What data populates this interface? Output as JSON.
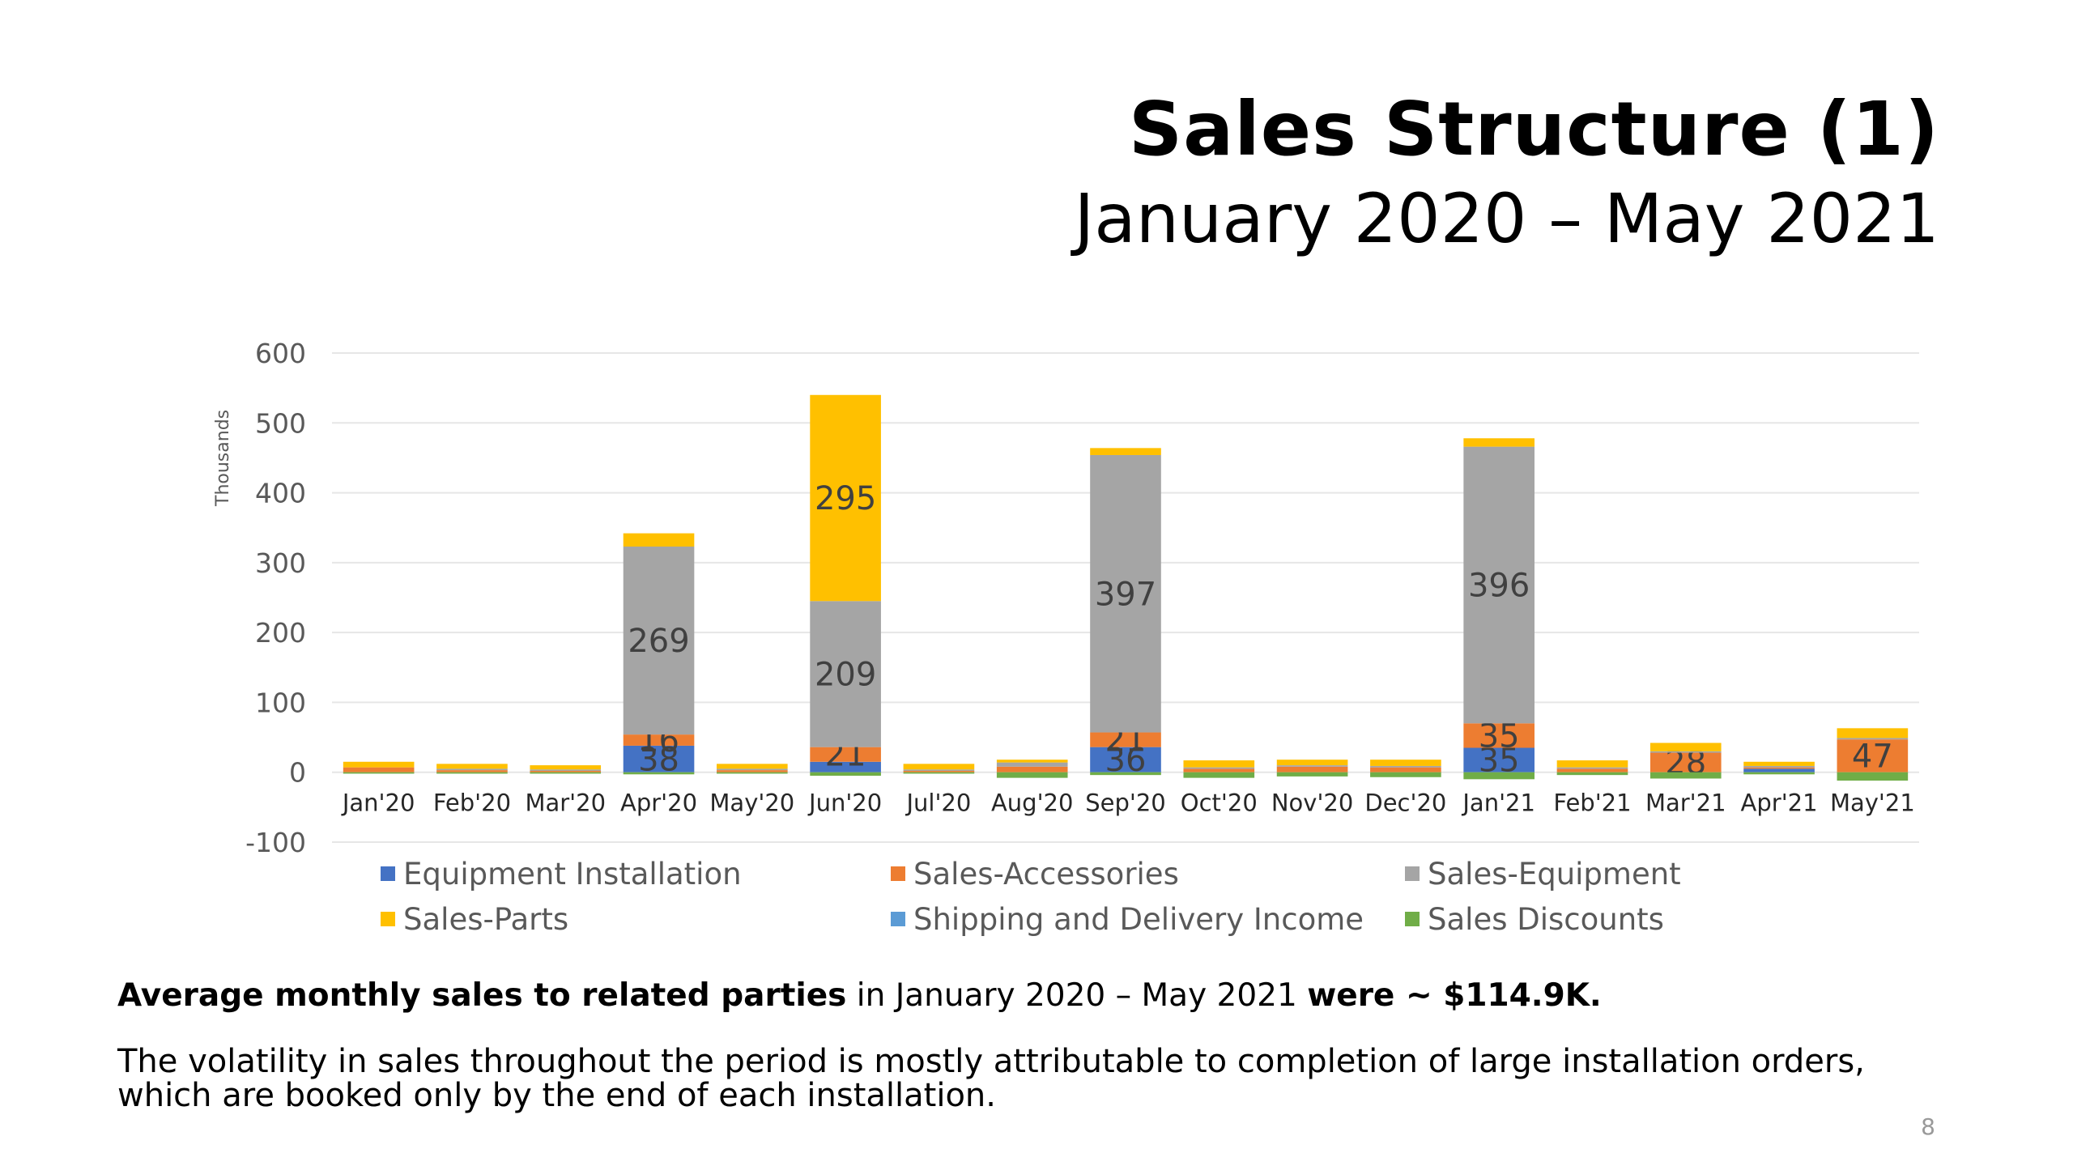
{
  "slide": {
    "title": "Sales Structure (1)",
    "subtitle": "January 2020 – May 2021",
    "note_bold_1": "Average monthly sales to related parties",
    "note_plain_1": " in January 2020 – May 2021 ",
    "note_bold_2": "were ~ $114.9K.",
    "note_2": "The volatility in sales throughout the period is mostly attributable to completion of large installation orders, which are booked only by the end of each installation.",
    "page_number": "8"
  },
  "chart_data": {
    "type": "bar",
    "stacked": true,
    "ylabel": "Thousands",
    "ylim": [
      -100,
      600
    ],
    "yticks": [
      -100,
      0,
      100,
      200,
      300,
      400,
      500,
      600
    ],
    "grid": true,
    "legend_position": "bottom",
    "categories": [
      "Jan'20",
      "Feb'20",
      "Mar'20",
      "Apr'20",
      "May'20",
      "Jun'20",
      "Jul'20",
      "Aug'20",
      "Sep'20",
      "Oct'20",
      "Nov'20",
      "Dec'20",
      "Jan'21",
      "Feb'21",
      "Mar'21",
      "Apr'21",
      "May'21"
    ],
    "series": [
      {
        "name": "Equipment Installation",
        "color": "#4472C4",
        "values": [
          0,
          0,
          0,
          38,
          0,
          15,
          0,
          0,
          36,
          0,
          0,
          0,
          35,
          0,
          0,
          5,
          0
        ],
        "labels": [
          null,
          null,
          null,
          "38",
          null,
          null,
          null,
          null,
          "36",
          null,
          null,
          null,
          "35",
          null,
          null,
          null,
          null
        ]
      },
      {
        "name": "Sales-Accessories",
        "color": "#ED7D31",
        "values": [
          7,
          3,
          2,
          16,
          3,
          21,
          2,
          8,
          21,
          5,
          8,
          7,
          35,
          5,
          28,
          2,
          47
        ],
        "labels": [
          null,
          null,
          null,
          "16",
          null,
          "21",
          null,
          null,
          "21",
          null,
          null,
          null,
          "35",
          null,
          "28",
          null,
          "47"
        ]
      },
      {
        "name": "Sales-Equipment",
        "color": "#A5A5A5",
        "values": [
          0,
          2,
          2,
          269,
          2,
          209,
          2,
          6,
          397,
          2,
          2,
          2,
          396,
          2,
          2,
          2,
          2
        ],
        "labels": [
          null,
          null,
          null,
          "269",
          null,
          "209",
          null,
          null,
          "397",
          null,
          null,
          null,
          "396",
          null,
          null,
          null,
          null
        ]
      },
      {
        "name": "Sales-Parts",
        "color": "#FFC000",
        "values": [
          8,
          7,
          6,
          19,
          7,
          295,
          8,
          4,
          10,
          10,
          8,
          9,
          12,
          10,
          12,
          6,
          14
        ],
        "labels": [
          null,
          null,
          null,
          null,
          null,
          "295",
          null,
          null,
          null,
          null,
          null,
          null,
          null,
          null,
          null,
          null,
          null
        ]
      },
      {
        "name": "Shipping and Delivery Income",
        "color": "#5B9BD5",
        "values": [
          0,
          0,
          0,
          0,
          0,
          0,
          0,
          0,
          0,
          0,
          0,
          0,
          0,
          0,
          0,
          0,
          0
        ],
        "labels": [
          null,
          null,
          null,
          null,
          null,
          null,
          null,
          null,
          null,
          null,
          null,
          null,
          null,
          null,
          null,
          null,
          null
        ]
      },
      {
        "name": "Sales Discounts",
        "color": "#70AD47",
        "values": [
          -2,
          -2,
          -2,
          -3,
          -2,
          -5,
          -2,
          -8,
          -4,
          -8,
          -6,
          -7,
          -10,
          -4,
          -9,
          -3,
          -12
        ],
        "labels": [
          null,
          null,
          null,
          null,
          null,
          null,
          null,
          null,
          null,
          null,
          null,
          null,
          null,
          null,
          null,
          null,
          null
        ]
      }
    ]
  }
}
